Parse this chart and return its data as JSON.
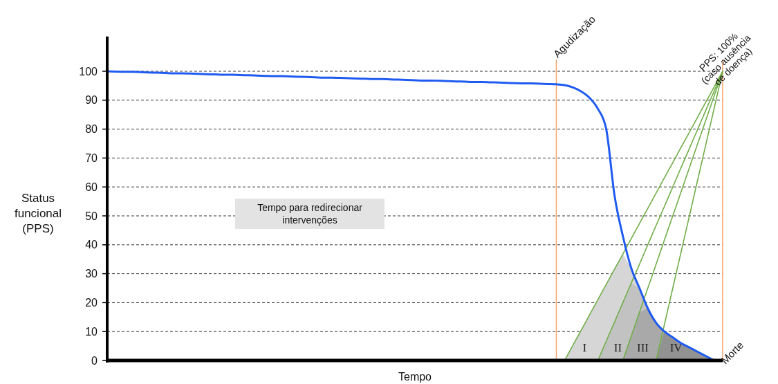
{
  "chart_data": {
    "type": "line",
    "xlabel": "Tempo",
    "ylabel": "Status funcional (PPS)",
    "categories": [
      null,
      null,
      null,
      null,
      null,
      null,
      null,
      null,
      null,
      null,
      null,
      null,
      null,
      null,
      null,
      null,
      null,
      null,
      null,
      null,
      null,
      null,
      null,
      null,
      null,
      null,
      null,
      null,
      null,
      null,
      null,
      null,
      null,
      null,
      null,
      null,
      null,
      null,
      null,
      null,
      null,
      null,
      null,
      null,
      null,
      null,
      null,
      null,
      null,
      null,
      null,
      null,
      null,
      null,
      null,
      null,
      null,
      null,
      null,
      null,
      null,
      null,
      null,
      null,
      null,
      null,
      null,
      null,
      null,
      null,
      null,
      null,
      null,
      null,
      null
    ],
    "ylim": [
      0,
      112
    ],
    "yticks": [
      0,
      10,
      20,
      30,
      40,
      50,
      60,
      70,
      80,
      90,
      100
    ],
    "grid": "y",
    "series": [
      {
        "type": "area",
        "name": "I",
        "color": "#d6d6d6",
        "values": [
          null,
          null,
          null,
          null,
          null,
          null,
          null,
          null,
          null,
          null,
          null,
          null,
          null,
          null,
          null,
          null,
          null,
          null,
          null,
          null,
          null,
          null,
          null,
          null,
          null,
          null,
          null,
          null,
          null,
          null,
          null,
          null,
          null,
          null,
          null,
          null,
          null,
          null,
          null,
          null,
          null,
          null,
          null,
          null,
          null,
          null,
          null,
          null,
          null,
          null,
          null,
          null,
          null,
          null,
          null,
          0,
          5.3,
          10.5,
          15.8,
          21.1,
          26.3,
          31.6,
          36.8,
          32,
          25,
          18,
          13,
          10,
          8,
          6,
          4.5,
          3,
          1.5,
          0,
          null
        ]
      },
      {
        "type": "area",
        "name": "II",
        "color": "#c2c2c2",
        "values": [
          null,
          null,
          null,
          null,
          null,
          null,
          null,
          null,
          null,
          null,
          null,
          null,
          null,
          null,
          null,
          null,
          null,
          null,
          null,
          null,
          null,
          null,
          null,
          null,
          null,
          null,
          null,
          null,
          null,
          null,
          null,
          null,
          null,
          null,
          null,
          null,
          null,
          null,
          null,
          null,
          null,
          null,
          null,
          null,
          null,
          null,
          null,
          null,
          null,
          null,
          null,
          null,
          null,
          null,
          null,
          null,
          null,
          null,
          null,
          0,
          6.7,
          13.3,
          20,
          26.7,
          25,
          18,
          13,
          10,
          8,
          6,
          4.5,
          3,
          1.5,
          0,
          null
        ]
      },
      {
        "type": "area",
        "name": "III",
        "color": "#a9a9a9",
        "values": [
          null,
          null,
          null,
          null,
          null,
          null,
          null,
          null,
          null,
          null,
          null,
          null,
          null,
          null,
          null,
          null,
          null,
          null,
          null,
          null,
          null,
          null,
          null,
          null,
          null,
          null,
          null,
          null,
          null,
          null,
          null,
          null,
          null,
          null,
          null,
          null,
          null,
          null,
          null,
          null,
          null,
          null,
          null,
          null,
          null,
          null,
          null,
          null,
          null,
          null,
          null,
          null,
          null,
          null,
          null,
          null,
          null,
          null,
          null,
          null,
          null,
          null,
          0,
          8.3,
          16.7,
          18,
          13,
          10,
          8,
          6,
          4.5,
          3,
          1.5,
          0,
          null
        ]
      },
      {
        "type": "area",
        "name": "IV",
        "color": "#929292",
        "values": [
          null,
          null,
          null,
          null,
          null,
          null,
          null,
          null,
          null,
          null,
          null,
          null,
          null,
          null,
          null,
          null,
          null,
          null,
          null,
          null,
          null,
          null,
          null,
          null,
          null,
          null,
          null,
          null,
          null,
          null,
          null,
          null,
          null,
          null,
          null,
          null,
          null,
          null,
          null,
          null,
          null,
          null,
          null,
          null,
          null,
          null,
          null,
          null,
          null,
          null,
          null,
          null,
          null,
          null,
          null,
          null,
          null,
          null,
          null,
          null,
          null,
          null,
          null,
          null,
          null,
          null,
          0,
          10,
          8,
          6,
          4.5,
          3,
          1.5,
          0,
          null
        ]
      },
      {
        "color": "#70ad47",
        "values": [
          null,
          null,
          null,
          null,
          null,
          null,
          null,
          null,
          null,
          null,
          null,
          null,
          null,
          null,
          null,
          null,
          null,
          null,
          null,
          null,
          null,
          null,
          null,
          null,
          null,
          null,
          null,
          null,
          null,
          null,
          null,
          null,
          null,
          null,
          null,
          null,
          null,
          null,
          null,
          null,
          null,
          null,
          null,
          null,
          null,
          null,
          null,
          null,
          null,
          null,
          null,
          null,
          null,
          null,
          null,
          0,
          5.3,
          10.5,
          15.8,
          21.1,
          26.3,
          31.6,
          36.8,
          42.1,
          47.4,
          52.6,
          57.9,
          63.2,
          68.4,
          73.7,
          78.9,
          84.2,
          89.5,
          94.7,
          100
        ]
      },
      {
        "color": "#70ad47",
        "values": [
          null,
          null,
          null,
          null,
          null,
          null,
          null,
          null,
          null,
          null,
          null,
          null,
          null,
          null,
          null,
          null,
          null,
          null,
          null,
          null,
          null,
          null,
          null,
          null,
          null,
          null,
          null,
          null,
          null,
          null,
          null,
          null,
          null,
          null,
          null,
          null,
          null,
          null,
          null,
          null,
          null,
          null,
          null,
          null,
          null,
          null,
          null,
          null,
          null,
          null,
          null,
          null,
          null,
          null,
          null,
          null,
          null,
          null,
          null,
          0,
          6.7,
          13.3,
          20,
          26.7,
          33.3,
          40,
          46.7,
          53.3,
          60,
          66.7,
          73.3,
          80,
          86.7,
          93.3,
          100
        ]
      },
      {
        "color": "#70ad47",
        "values": [
          null,
          null,
          null,
          null,
          null,
          null,
          null,
          null,
          null,
          null,
          null,
          null,
          null,
          null,
          null,
          null,
          null,
          null,
          null,
          null,
          null,
          null,
          null,
          null,
          null,
          null,
          null,
          null,
          null,
          null,
          null,
          null,
          null,
          null,
          null,
          null,
          null,
          null,
          null,
          null,
          null,
          null,
          null,
          null,
          null,
          null,
          null,
          null,
          null,
          null,
          null,
          null,
          null,
          null,
          null,
          null,
          null,
          null,
          null,
          null,
          null,
          null,
          0,
          8.3,
          16.7,
          25,
          33.3,
          41.7,
          50,
          58.3,
          66.7,
          75,
          83.3,
          91.7,
          100
        ]
      },
      {
        "color": "#70ad47",
        "values": [
          null,
          null,
          null,
          null,
          null,
          null,
          null,
          null,
          null,
          null,
          null,
          null,
          null,
          null,
          null,
          null,
          null,
          null,
          null,
          null,
          null,
          null,
          null,
          null,
          null,
          null,
          null,
          null,
          null,
          null,
          null,
          null,
          null,
          null,
          null,
          null,
          null,
          null,
          null,
          null,
          null,
          null,
          null,
          null,
          null,
          null,
          null,
          null,
          null,
          null,
          null,
          null,
          null,
          null,
          null,
          null,
          null,
          null,
          null,
          null,
          null,
          null,
          null,
          null,
          null,
          null,
          0,
          12.5,
          25,
          37.5,
          50,
          62.5,
          75,
          87.5,
          100
        ]
      },
      {
        "color": "#1f5bf0",
        "values": [
          100,
          99.9,
          99.8,
          99.8,
          99.7,
          99.6,
          99.5,
          99.4,
          99.3,
          99.3,
          99.2,
          99.1,
          99.0,
          98.9,
          98.8,
          98.8,
          98.7,
          98.6,
          98.5,
          98.4,
          98.3,
          98.3,
          98.2,
          98.1,
          98.0,
          97.9,
          97.8,
          97.8,
          97.7,
          97.6,
          97.5,
          97.4,
          97.3,
          97.3,
          97.2,
          97.1,
          97.0,
          96.9,
          96.8,
          96.8,
          96.7,
          96.6,
          96.5,
          96.4,
          96.3,
          96.3,
          96.2,
          96.1,
          96.0,
          95.9,
          95.8,
          95.8,
          95.7,
          95.6,
          95.5,
          95.2,
          94.4,
          93,
          90.8,
          87,
          80,
          57,
          43,
          32,
          25,
          18,
          13,
          10,
          8,
          6,
          4.5,
          3,
          1.5,
          0,
          null
        ]
      }
    ],
    "annotations": [
      "Tempo para redirecionar intervenções",
      {
        "text": "PPS: 100% (caso ausência de doença)",
        "y": 100
      },
      "Agudização",
      "Morte"
    ]
  }
}
